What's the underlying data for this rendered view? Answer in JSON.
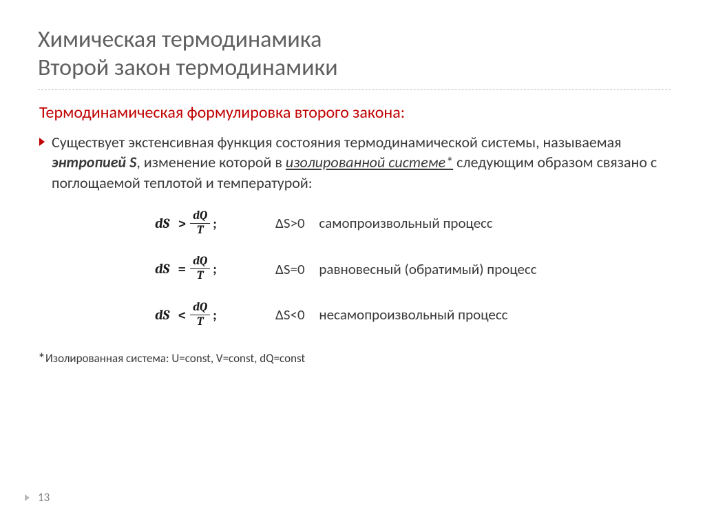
{
  "title": {
    "line1": "Химическая термодинамика",
    "line2": "Второй закон термодинамики"
  },
  "subheading": "Термодинамическая формулировка второго закона:",
  "paragraph": {
    "pre": "Существует экстенсивная функция состояния термодинамической системы, называемая ",
    "bold": "энтропией S",
    "mid": ", изменение которой в ",
    "underline": "изолированной системе*",
    "post": " следующим образом связано с поглощаемой теплотой и температурой:"
  },
  "formulas": [
    {
      "lhs": "dS",
      "rel": ">",
      "num": "dQ",
      "den": "T",
      "cond": "ΔS>0",
      "desc": "самопроизвольный процесс"
    },
    {
      "lhs": "dS",
      "rel": "=",
      "num": "dQ",
      "den": "T",
      "cond": "ΔS=0",
      "desc": "равновесный (обратимый) процесс"
    },
    {
      "lhs": "dS",
      "rel": "<",
      "num": "dQ",
      "den": "T",
      "cond": "ΔS<0",
      "desc": "несамопроизвольный процесс"
    }
  ],
  "footnote": {
    "star": "*",
    "text": "Изолированная система: U=const, V=const, dQ=const"
  },
  "page_number": "13",
  "colors": {
    "title": "#606060",
    "accent": "#c00000",
    "body": "#3a3a3a",
    "rule": "#b8b8b8",
    "page_num": "#808080"
  }
}
